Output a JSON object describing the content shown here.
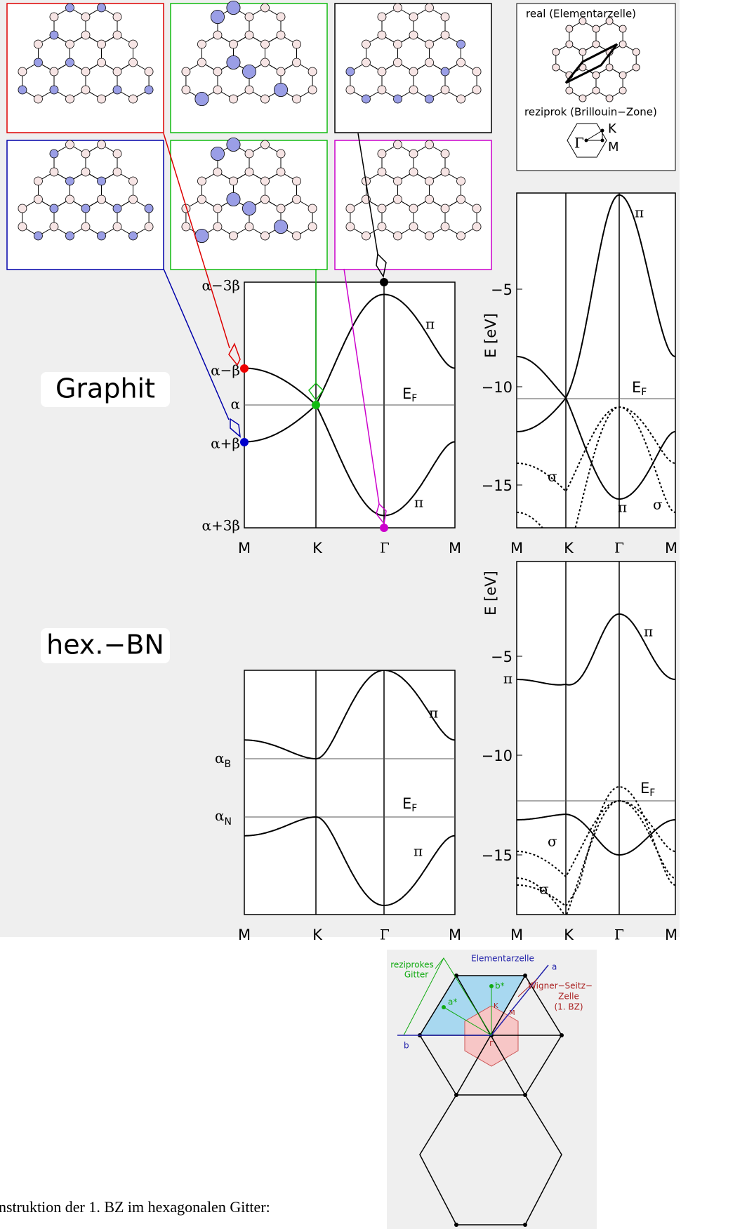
{
  "inset": {
    "real": "real (Elementarzelle)",
    "reziprok": "reziprok (Brillouin−Zone)",
    "gamma": "Γ",
    "k": "K",
    "m": "M"
  },
  "graphit": {
    "label": "Graphit",
    "tb_levels": [
      "α−3β",
      "α−β",
      "α",
      "α+β",
      "α+3β"
    ],
    "x_labels": [
      "M",
      "K",
      "Γ",
      "M"
    ],
    "fermi": {
      "main": "E",
      "sub": "F"
    },
    "pi_upper": "π",
    "pi_lower": "π",
    "dft": {
      "y_axis": "E [eV]",
      "yticks": [
        "−5",
        "−10",
        "−15"
      ],
      "x_labels": [
        "M",
        "K",
        "Γ",
        "M"
      ],
      "fermi": {
        "main": "E",
        "sub": "F"
      },
      "pi_upper": "π",
      "pi_lower": "π",
      "sigma_left": "σ",
      "sigma_right": "σ"
    }
  },
  "hbn": {
    "label": "hex.−BN",
    "levels": [
      {
        "main": "α",
        "sub": "B"
      },
      {
        "main": "α",
        "sub": "N"
      }
    ],
    "x_labels": [
      "M",
      "K",
      "Γ",
      "M"
    ],
    "fermi": {
      "main": "E",
      "sub": "F"
    },
    "pi_upper": "π",
    "pi_lower": "π",
    "dft": {
      "y_axis": "E [eV]",
      "yticks": [
        "−5",
        "−10",
        "−15"
      ],
      "x_labels": [
        "M",
        "K",
        "Γ",
        "M"
      ],
      "fermi": {
        "main": "E",
        "sub": "F"
      },
      "pi_upper": "π",
      "pi_left": "π",
      "sigma_upper": "σ",
      "sigma_lower": "σ"
    }
  },
  "bz_construction": {
    "reciprocal": [
      "reziprokes",
      "Gitter"
    ],
    "unit_cell": "Elementarzelle",
    "a": "a",
    "b_star": "b*",
    "wigner_seitz": [
      "Wigner−Seitz−",
      "Zelle",
      "(1. BZ)"
    ],
    "k": "K",
    "m": "M",
    "a_star": "a*",
    "gamma": "Γ",
    "b": "b"
  },
  "caption": "nstruktion der 1. BZ im hexagonalen Gitter:"
}
